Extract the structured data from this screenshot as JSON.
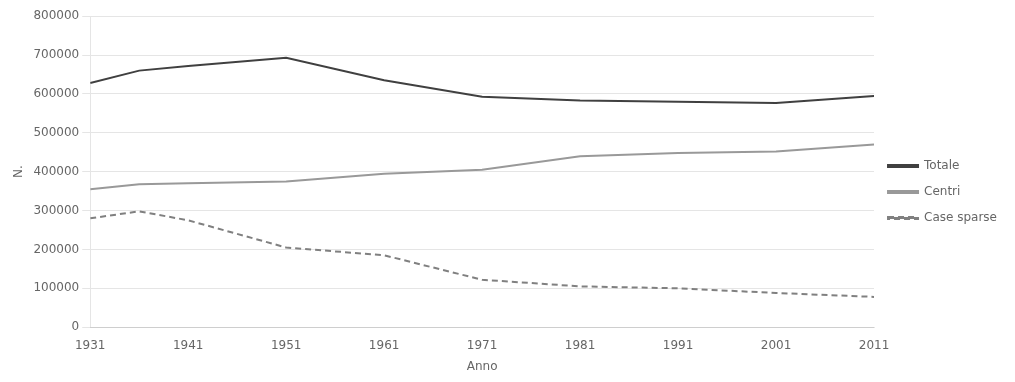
{
  "chart_data": {
    "type": "line",
    "x": [
      1931,
      1936,
      1941,
      1951,
      1961,
      1971,
      1981,
      1991,
      2001,
      2011
    ],
    "series": [
      {
        "name": "Totale",
        "color": "#404040",
        "line_style": "solid",
        "values": [
          628000,
          660000,
          672000,
          693000,
          635000,
          593000,
          583000,
          580000,
          577000,
          595000
        ]
      },
      {
        "name": "Centri",
        "color": "#999999",
        "line_style": "solid",
        "values": [
          355000,
          368000,
          370000,
          375000,
          395000,
          405000,
          440000,
          448000,
          452000,
          470000
        ]
      },
      {
        "name": "Case sparse",
        "color": "#808080",
        "line_style": "dashed",
        "values": [
          280000,
          298000,
          275000,
          205000,
          185000,
          122000,
          105000,
          100000,
          88000,
          78000
        ]
      }
    ],
    "xlabel": "Anno",
    "ylabel": "N.",
    "xlim": [
      1931,
      2011
    ],
    "xticks": [
      1931,
      1941,
      1951,
      1961,
      1971,
      1981,
      1991,
      2001,
      2011
    ],
    "ylim": [
      0,
      800000
    ],
    "yticks": [
      0,
      100000,
      200000,
      300000,
      400000,
      500000,
      600000,
      700000,
      800000
    ],
    "grid": "y",
    "legend": "right"
  }
}
